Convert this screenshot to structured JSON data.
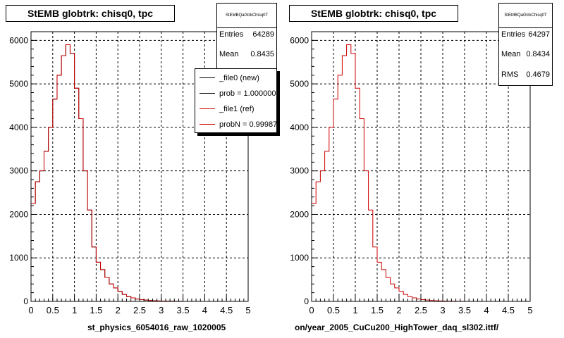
{
  "footer": "",
  "left": {
    "title": "StEMB globtrk: chisq0, tpc",
    "stats_header": "StEMBQaGtrkChisq0T",
    "stats": [
      {
        "label": "Entries",
        "value": "64289"
      },
      {
        "label": "Mean",
        "value": "0.8435"
      }
    ],
    "xlabel": "st_physics_6054016_raw_1020005",
    "legend": [
      {
        "label": "_file0 (new)",
        "color": "#000000"
      },
      {
        "label": "prob = 1.000000",
        "color": "#000000"
      },
      {
        "label": "_file1 (ref)",
        "color": "#cc0000"
      },
      {
        "label": "probN = 0.99987",
        "color": "#cc0000"
      }
    ]
  },
  "right": {
    "title": "StEMB globtrk: chisq0, tpc",
    "stats_header": "StEMBQaGtrkChisq0T",
    "stats": [
      {
        "label": "Entries",
        "value": "64297"
      },
      {
        "label": "Mean",
        "value": "0.8434"
      },
      {
        "label": "RMS",
        "value": "0.4679"
      }
    ],
    "xlabel": "on/year_2005_CuCu200_HighTower_daq_sl302.ittf/"
  },
  "chart_data": [
    {
      "type": "bar",
      "style": "step-histogram",
      "title": "StEMB globtrk: chisq0, tpc",
      "xlabel": "st_physics_6054016_raw_1020005",
      "xlim": [
        0,
        5
      ],
      "ylim": [
        0,
        6200
      ],
      "xticks": [
        "0",
        "0.5",
        "1",
        "1.5",
        "2",
        "2.5",
        "3",
        "3.5",
        "4",
        "4.5",
        "5"
      ],
      "yticks": [
        "0",
        "1000",
        "2000",
        "3000",
        "4000",
        "5000",
        "6000"
      ],
      "grid": true,
      "bin_width": 0.1,
      "series": [
        {
          "name": "_file0 (new)",
          "color": "#000000",
          "values": [
            2250,
            2750,
            3000,
            3450,
            4000,
            4650,
            5200,
            5650,
            5900,
            5700,
            4900,
            4200,
            3000,
            2100,
            1250,
            900,
            730,
            550,
            400,
            310,
            230,
            160,
            110,
            80,
            55,
            40,
            30,
            20,
            15,
            10,
            8,
            6,
            4,
            3,
            2,
            1,
            1,
            0,
            0,
            0,
            0,
            0,
            0,
            0,
            0,
            0,
            0,
            0,
            0,
            0
          ]
        },
        {
          "name": "_file1 (ref)",
          "color": "#cc0000",
          "values": [
            2250,
            2750,
            3000,
            3450,
            4000,
            4650,
            5200,
            5650,
            5900,
            5700,
            4900,
            4200,
            3000,
            2100,
            1250,
            900,
            730,
            550,
            400,
            310,
            230,
            160,
            110,
            80,
            55,
            40,
            30,
            20,
            15,
            10,
            8,
            6,
            4,
            3,
            2,
            1,
            1,
            0,
            0,
            0,
            0,
            0,
            0,
            0,
            0,
            0,
            0,
            0,
            0,
            0
          ]
        }
      ]
    },
    {
      "type": "bar",
      "style": "step-histogram",
      "title": "StEMB globtrk: chisq0, tpc",
      "xlabel": "on/year_2005_CuCu200_HighTower_daq_sl302.ittf/",
      "xlim": [
        0,
        5
      ],
      "ylim": [
        0,
        6200
      ],
      "xticks": [
        "0",
        "0.5",
        "1",
        "1.5",
        "2",
        "2.5",
        "3",
        "3.5",
        "4",
        "4.5",
        "5"
      ],
      "yticks": [
        "0",
        "1000",
        "2000",
        "3000",
        "4000",
        "5000",
        "6000"
      ],
      "grid": true,
      "bin_width": 0.1,
      "series": [
        {
          "name": "",
          "color": "#cc0000",
          "values": [
            2250,
            2750,
            3000,
            3450,
            4000,
            4650,
            5200,
            5650,
            5900,
            5700,
            4900,
            4200,
            3000,
            2100,
            1250,
            900,
            730,
            550,
            400,
            310,
            230,
            160,
            110,
            80,
            55,
            40,
            30,
            20,
            15,
            10,
            8,
            6,
            4,
            3,
            2,
            1,
            1,
            0,
            0,
            0,
            0,
            0,
            0,
            0,
            0,
            0,
            0,
            0,
            0,
            0
          ]
        }
      ]
    }
  ]
}
